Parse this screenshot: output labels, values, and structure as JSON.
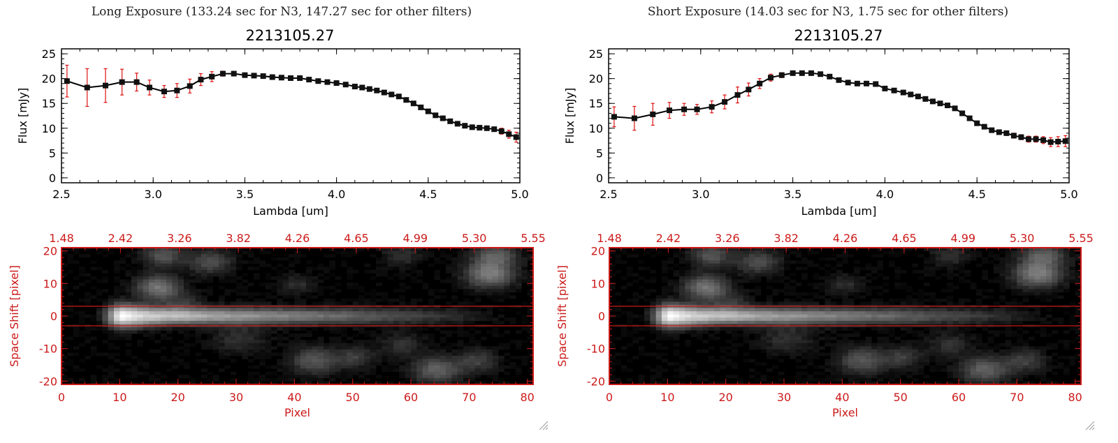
{
  "panels": [
    {
      "heading": "Long Exposure (133.24 sec for N3, 147.27 sec for other filters)",
      "spectrum_title": "2213105.27",
      "image_title": ""
    },
    {
      "heading": "Short Exposure (14.03 sec for N3, 1.75 sec for other filters)",
      "spectrum_title": "2213105.27",
      "image_title": ""
    }
  ],
  "colors": {
    "error_bars": "#dd1111",
    "image_axes": "#cc1a1a",
    "spectrum_line": "#000000",
    "band_lines": "#cc1a1a"
  },
  "chart_data": [
    {
      "type": "line",
      "title": "2213105.27",
      "xlabel": "Lambda [um]",
      "ylabel": "Flux [mJy]",
      "xlim": [
        2.5,
        5.0
      ],
      "ylim": [
        -1,
        26
      ],
      "xticks": [
        "2.5",
        "3.0",
        "3.5",
        "4.0",
        "4.5",
        "5.0"
      ],
      "yticks": [
        "0",
        "5",
        "10",
        "15",
        "20",
        "25"
      ],
      "grid": false,
      "series": [
        {
          "x": [
            2.53,
            2.64,
            2.74,
            2.83,
            2.91,
            2.98,
            3.06,
            3.13,
            3.2,
            3.26,
            3.32,
            3.38,
            3.44,
            3.5,
            3.55,
            3.6,
            3.65,
            3.7,
            3.75,
            3.8,
            3.85,
            3.9,
            3.95,
            4.0,
            4.05,
            4.1,
            4.14,
            4.18,
            4.22,
            4.26,
            4.3,
            4.34,
            4.38,
            4.42,
            4.46,
            4.5,
            4.54,
            4.58,
            4.62,
            4.66,
            4.7,
            4.74,
            4.78,
            4.82,
            4.86,
            4.9,
            4.94,
            4.98
          ],
          "y": [
            19.5,
            18.2,
            18.6,
            19.3,
            19.3,
            18.2,
            17.4,
            17.6,
            18.5,
            19.8,
            20.4,
            21.0,
            21.0,
            20.7,
            20.6,
            20.5,
            20.3,
            20.2,
            20.1,
            20.1,
            19.8,
            19.5,
            19.3,
            19.1,
            18.8,
            18.4,
            18.2,
            17.9,
            17.6,
            17.2,
            16.8,
            16.4,
            15.7,
            15.0,
            14.2,
            13.4,
            12.6,
            12.0,
            11.4,
            10.9,
            10.5,
            10.2,
            10.1,
            10.0,
            9.8,
            9.4,
            8.8,
            8.2
          ],
          "yerr": [
            3.2,
            3.8,
            3.4,
            2.6,
            1.8,
            1.5,
            1.2,
            1.4,
            1.4,
            1.2,
            1.0,
            0.5,
            0.4,
            0.3,
            0.3,
            0.3,
            0.3,
            0.3,
            0.3,
            0.3,
            0.3,
            0.3,
            0.3,
            0.3,
            0.3,
            0.3,
            0.3,
            0.3,
            0.3,
            0.3,
            0.3,
            0.3,
            0.3,
            0.3,
            0.3,
            0.3,
            0.3,
            0.3,
            0.3,
            0.3,
            0.3,
            0.3,
            0.3,
            0.4,
            0.4,
            0.6,
            0.8,
            1.0
          ]
        }
      ]
    },
    {
      "type": "line",
      "title": "2213105.27",
      "xlabel": "Lambda [um]",
      "ylabel": "Flux [mJy]",
      "xlim": [
        2.5,
        5.0
      ],
      "ylim": [
        -1,
        26
      ],
      "xticks": [
        "2.5",
        "3.0",
        "3.5",
        "4.0",
        "4.5",
        "5.0"
      ],
      "yticks": [
        "0",
        "5",
        "10",
        "15",
        "20",
        "25"
      ],
      "grid": false,
      "series": [
        {
          "x": [
            2.53,
            2.64,
            2.74,
            2.83,
            2.91,
            2.98,
            3.06,
            3.13,
            3.2,
            3.26,
            3.32,
            3.38,
            3.44,
            3.5,
            3.55,
            3.6,
            3.65,
            3.7,
            3.75,
            3.8,
            3.85,
            3.9,
            3.95,
            4.0,
            4.05,
            4.1,
            4.14,
            4.18,
            4.22,
            4.26,
            4.3,
            4.34,
            4.38,
            4.42,
            4.46,
            4.5,
            4.54,
            4.58,
            4.62,
            4.66,
            4.7,
            4.74,
            4.78,
            4.82,
            4.86,
            4.9,
            4.94,
            4.98
          ],
          "y": [
            12.3,
            12.0,
            12.8,
            13.6,
            13.8,
            13.8,
            14.3,
            15.3,
            16.7,
            17.8,
            19.0,
            20.2,
            20.7,
            21.1,
            21.1,
            21.1,
            20.9,
            20.4,
            19.7,
            19.2,
            19.0,
            19.0,
            18.9,
            18.0,
            17.6,
            17.2,
            16.8,
            16.4,
            15.9,
            15.4,
            15.0,
            14.6,
            14.0,
            13.0,
            12.0,
            11.0,
            10.3,
            9.6,
            9.2,
            9.0,
            8.5,
            8.2,
            7.8,
            7.8,
            7.6,
            7.2,
            7.3,
            7.4
          ],
          "yerr": [
            2.0,
            2.4,
            2.2,
            1.6,
            1.2,
            1.0,
            1.2,
            1.4,
            1.6,
            1.3,
            1.0,
            0.7,
            0.5,
            0.4,
            0.3,
            0.3,
            0.3,
            0.3,
            0.3,
            0.3,
            0.3,
            0.3,
            0.3,
            0.3,
            0.3,
            0.3,
            0.3,
            0.3,
            0.3,
            0.3,
            0.3,
            0.3,
            0.3,
            0.3,
            0.3,
            0.3,
            0.3,
            0.4,
            0.4,
            0.4,
            0.5,
            0.5,
            0.6,
            0.6,
            0.7,
            0.9,
            1.0,
            1.1
          ]
        }
      ]
    },
    {
      "type": "heatmap",
      "xlabel": "Pixel",
      "ylabel": "Space Shift [pixel]",
      "xlim": [
        0,
        81
      ],
      "ylim": [
        -21,
        21
      ],
      "xticks": [
        "0",
        "10",
        "20",
        "30",
        "40",
        "50",
        "60",
        "70",
        "80"
      ],
      "yticks": [
        "-20",
        "-10",
        "0",
        "10",
        "20"
      ],
      "top_ticks": [
        "1.48",
        "2.42",
        "3.26",
        "3.82",
        "4.26",
        "4.65",
        "4.99",
        "5.30",
        "5.55"
      ],
      "band_lines_y": [
        3,
        -3
      ]
    },
    {
      "type": "heatmap",
      "xlabel": "Pixel",
      "ylabel": "Space Shift [pixel]",
      "xlim": [
        0,
        81
      ],
      "ylim": [
        -21,
        21
      ],
      "xticks": [
        "0",
        "10",
        "20",
        "30",
        "40",
        "50",
        "60",
        "70",
        "80"
      ],
      "yticks": [
        "-20",
        "-10",
        "0",
        "10",
        "20"
      ],
      "top_ticks": [
        "1.48",
        "2.42",
        "3.26",
        "3.82",
        "4.26",
        "4.65",
        "4.99",
        "5.30",
        "5.55"
      ],
      "band_lines_y": [
        3,
        -3
      ]
    }
  ]
}
